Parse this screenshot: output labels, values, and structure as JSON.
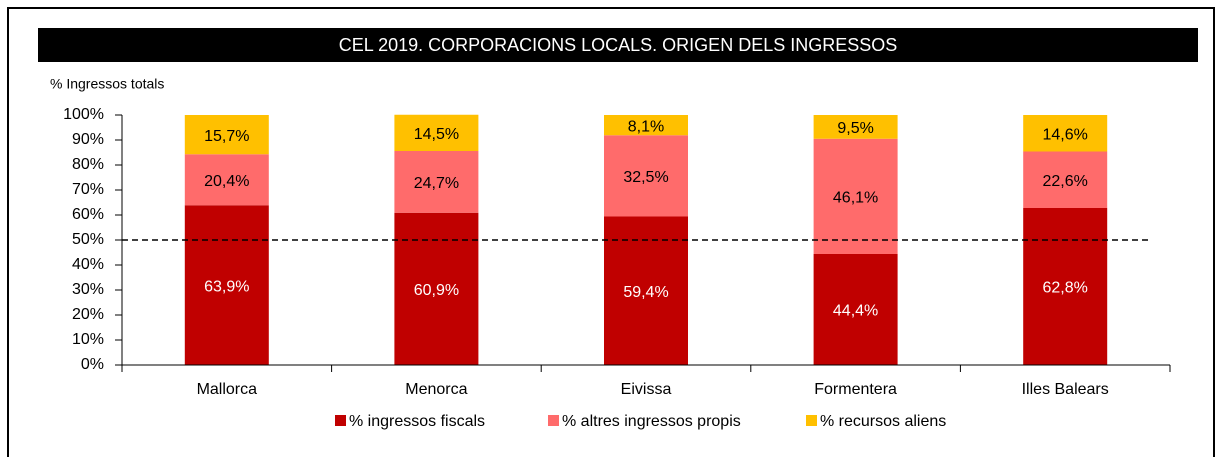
{
  "chart_data": {
    "type": "stacked_bar",
    "title": "CEL 2019. CORPORACIONS LOCALS. ORIGEN DELS INGRESSOS",
    "y_label": "% Ingressos totals",
    "categories": [
      "Mallorca",
      "Menorca",
      "Eivissa",
      "Formentera",
      "Illes Balears"
    ],
    "series": [
      {
        "name": "% ingressos fiscals",
        "color": "#c00000",
        "values": [
          63.9,
          60.9,
          59.4,
          44.4,
          62.8
        ],
        "value_labels": [
          "63,9%",
          "60,9%",
          "59,4%",
          "44,4%",
          "62,8%"
        ]
      },
      {
        "name": "% altres ingressos propis",
        "color": "#ff6b6b",
        "values": [
          20.4,
          24.7,
          32.5,
          46.1,
          22.6
        ],
        "value_labels": [
          "20,4%",
          "24,7%",
          "32,5%",
          "46,1%",
          "22,6%"
        ]
      },
      {
        "name": "% recursos aliens",
        "color": "#ffc000",
        "values": [
          15.7,
          14.5,
          8.1,
          9.5,
          14.6
        ],
        "value_labels": [
          "15,7%",
          "14,5%",
          "8,1%",
          "9,5%",
          "14,6%"
        ]
      }
    ],
    "ylim": [
      0,
      100
    ],
    "yticks": [
      {
        "value": 0,
        "label": "0%"
      },
      {
        "value": 10,
        "label": "10%"
      },
      {
        "value": 20,
        "label": "20%"
      },
      {
        "value": 30,
        "label": "30%"
      },
      {
        "value": 40,
        "label": "40%"
      },
      {
        "value": 50,
        "label": "50%"
      },
      {
        "value": 60,
        "label": "60%"
      },
      {
        "value": 70,
        "label": "70%"
      },
      {
        "value": 80,
        "label": "80%"
      },
      {
        "value": 90,
        "label": "90%"
      },
      {
        "value": 100,
        "label": "100%"
      }
    ],
    "reference_line": 50,
    "legend": "bottom"
  }
}
